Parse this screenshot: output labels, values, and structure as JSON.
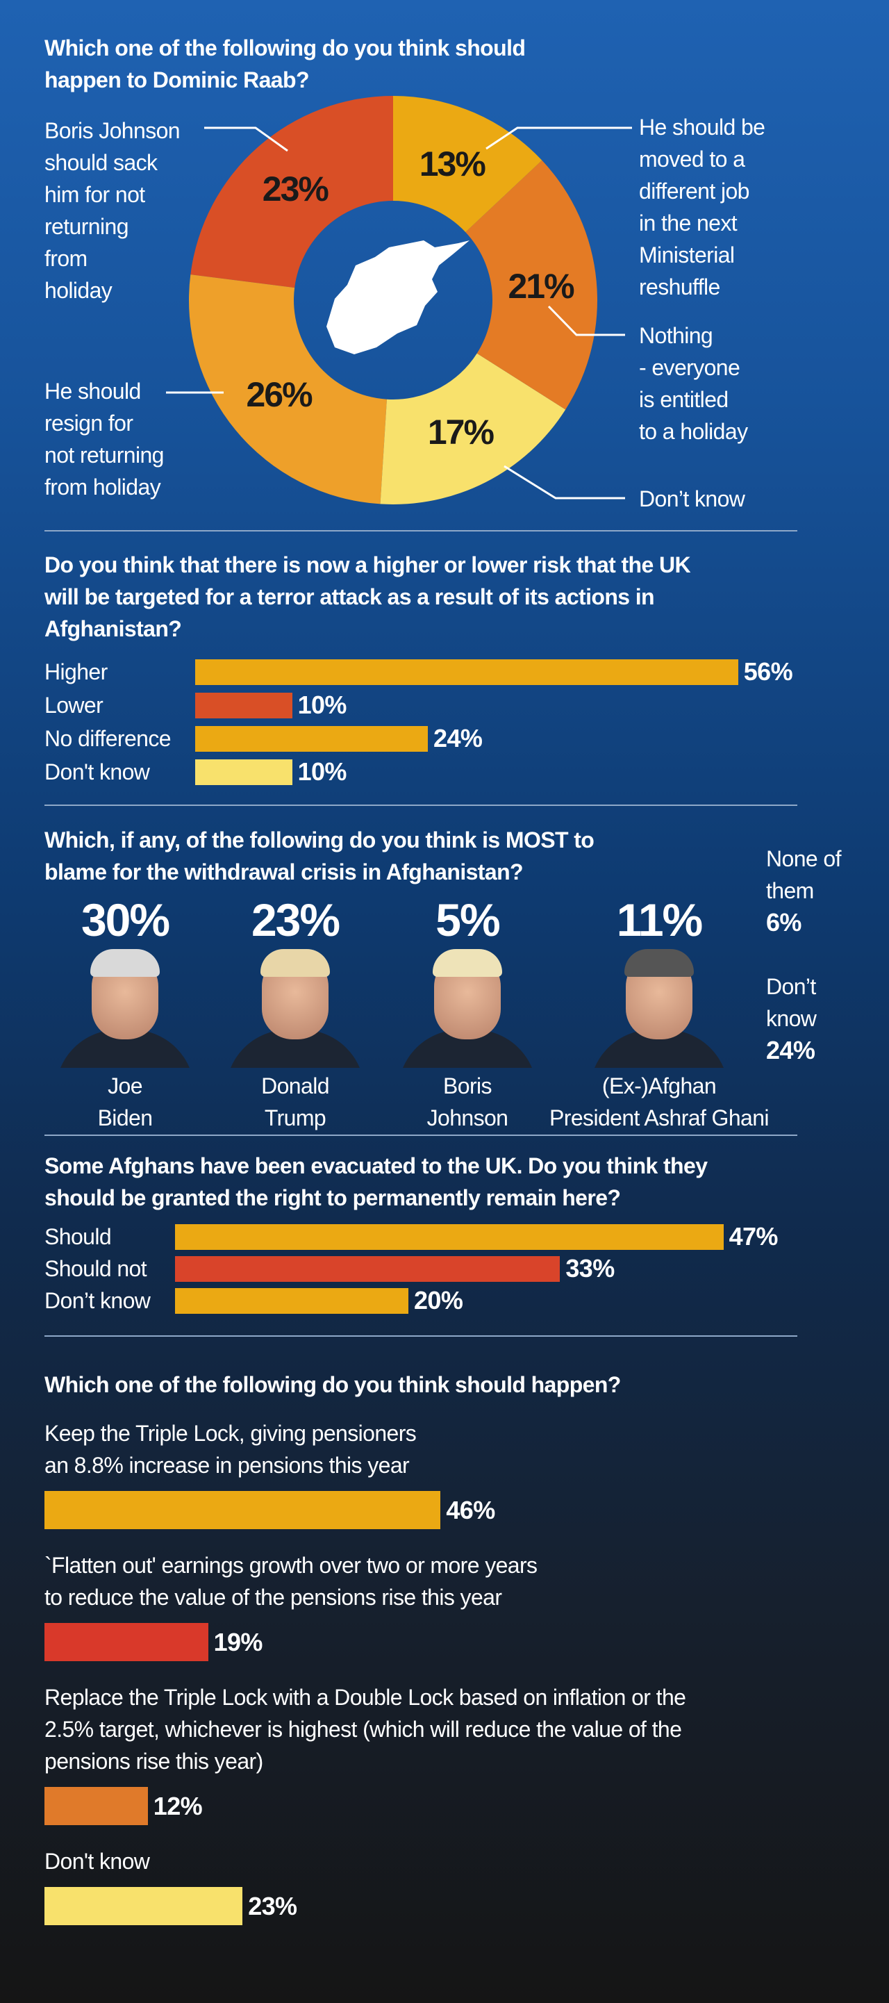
{
  "chart_data": [
    {
      "type": "donut",
      "title": "Which one of the following do you think should\nhappen to Dominic Raab?",
      "categories": [
        "He should be\nmoved to a\ndifferent job\nin the next\nMinisterial\nreshuffle",
        "Nothing\n- everyone\nis entitled\nto a holiday",
        "Don’t know",
        "He should\nresign for\nnot returning\nfrom holiday",
        "Boris Johnson\nshould sack\nhim for not\nreturning\nfrom\nholiday"
      ],
      "values": [
        13,
        21,
        17,
        26,
        23
      ],
      "value_labels": [
        "13%",
        "21%",
        "17%",
        "26%",
        "23%"
      ],
      "colors": [
        "#eba913",
        "#e47b25",
        "#f8e16c",
        "#eea02a",
        "#d94f26"
      ]
    },
    {
      "type": "bar",
      "title": "Do you think that there is now a higher or lower risk that the UK\nwill be targeted for a terror attack as a result of its actions in\nAfghanistan?",
      "categories": [
        "Higher",
        "Lower",
        "No difference",
        "Don't know"
      ],
      "values": [
        56,
        10,
        24,
        10
      ],
      "value_labels": [
        "56%",
        "10%",
        "24%",
        "10%"
      ],
      "colors": [
        "#eba913",
        "#d94f26",
        "#eba913",
        "#f8e16c"
      ]
    },
    {
      "type": "portrait",
      "title": "Which, if any, of the following do you think is MOST to\nblame for the withdrawal crisis in Afghanistan?",
      "categories": [
        "Joe\nBiden",
        "Donald\nTrump",
        "Boris\nJohnson",
        "(Ex-)Afghan\nPresident Ashraf Ghani"
      ],
      "values": [
        30,
        23,
        5,
        11
      ],
      "value_labels": [
        "30%",
        "23%",
        "5%",
        "11%"
      ]
    },
    {
      "type": "list",
      "categories": [
        "None of\nthem",
        "Don’t\nknow"
      ],
      "values": [
        6,
        24
      ],
      "value_labels": [
        "6%",
        "24%"
      ]
    },
    {
      "type": "bar",
      "title": "Some Afghans have been evacuated to the UK. Do you think they\nshould be granted the right to permanently remain here?",
      "categories": [
        "Should",
        "Should not",
        "Don’t know"
      ],
      "values": [
        47,
        33,
        20
      ],
      "value_labels": [
        "47%",
        "33%",
        "20%"
      ],
      "colors": [
        "#eba913",
        "#d9442a",
        "#eba913"
      ]
    },
    {
      "type": "bar",
      "title": "Which one of the following do you think should happen?",
      "categories": [
        "Keep the Triple Lock, giving pensioners\nan 8.8% increase in pensions this year",
        "`Flatten out' earnings growth over two or more years\nto reduce the value of the pensions rise this year",
        "Replace the Triple Lock with a Double Lock based on inflation or the\n2.5% target, whichever is highest (which will reduce the value of the\npensions rise this year)",
        "Don't know"
      ],
      "values": [
        46,
        19,
        12,
        23
      ],
      "value_labels": [
        "46%",
        "19%",
        "12%",
        "23%"
      ],
      "colors": [
        "#eba913",
        "#d9392a",
        "#e07a2a",
        "#f8e16c"
      ]
    }
  ]
}
